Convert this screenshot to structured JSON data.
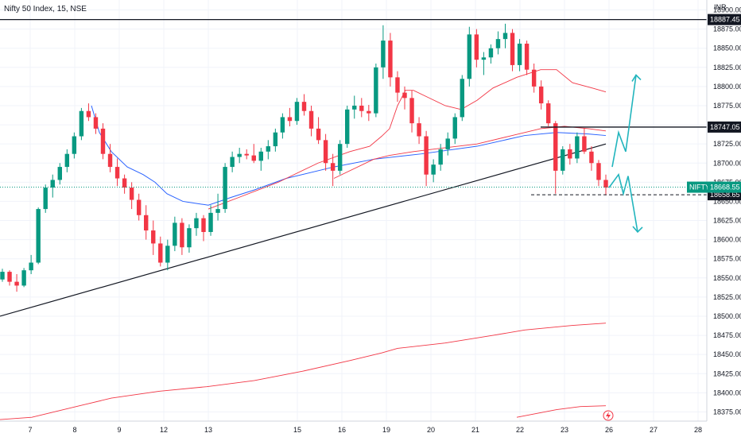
{
  "chart_data": {
    "type": "candlestick",
    "title": "Nifty 50 Index, 15, NSE",
    "currency": "INR",
    "x_ticks": [
      "7",
      "8",
      "9",
      "12",
      "13",
      "15",
      "16",
      "19",
      "20",
      "21",
      "22",
      "23",
      "26",
      "27",
      "28"
    ],
    "y_ticks": [
      "18375.00",
      "18400.00",
      "18425.00",
      "18450.00",
      "18475.00",
      "18500.00",
      "18525.00",
      "18550.00",
      "18575.00",
      "18600.00",
      "18625.00",
      "18650.00",
      "18675.00",
      "18700.00",
      "18725.00",
      "18750.00",
      "18775.00",
      "18800.00",
      "18825.00",
      "18850.00",
      "18875.00",
      "18900.00"
    ],
    "ylim": [
      18363,
      18913
    ],
    "last_price": {
      "symbol": "NIFTY",
      "value": 18668.55,
      "label": "18668.55"
    },
    "price_levels": [
      {
        "value": 18887.45,
        "label": "18887.45"
      },
      {
        "value": 18747.05,
        "label": "18747.05"
      },
      {
        "value": 18658.65,
        "label": "18658.65"
      }
    ],
    "overlays": {
      "trendline": [
        [
          0,
          18500
        ],
        [
          762,
          18725
        ]
      ],
      "blue_ma": [
        [
          115,
          18775
        ],
        [
          125,
          18740
        ],
        [
          140,
          18715
        ],
        [
          160,
          18695
        ],
        [
          180,
          18685
        ],
        [
          195,
          18675
        ],
        [
          210,
          18660
        ],
        [
          230,
          18650
        ],
        [
          262,
          18645
        ],
        [
          290,
          18655
        ],
        [
          320,
          18665
        ],
        [
          360,
          18680
        ],
        [
          420,
          18695
        ],
        [
          470,
          18705
        ],
        [
          530,
          18712
        ],
        [
          600,
          18722
        ],
        [
          660,
          18736
        ],
        [
          700,
          18740
        ],
        [
          740,
          18738
        ],
        [
          762,
          18736
        ]
      ],
      "red_inner": [
        [
          262,
          18640
        ],
        [
          300,
          18655
        ],
        [
          350,
          18675
        ],
        [
          400,
          18700
        ],
        [
          440,
          18715
        ],
        [
          465,
          18722
        ],
        [
          480,
          18735
        ],
        [
          490,
          18745
        ],
        [
          500,
          18775
        ],
        [
          510,
          18795
        ],
        [
          520,
          18795
        ],
        [
          540,
          18785
        ],
        [
          560,
          18775
        ],
        [
          580,
          18770
        ],
        [
          600,
          18782
        ],
        [
          620,
          18798
        ],
        [
          650,
          18812
        ],
        [
          680,
          18822
        ],
        [
          700,
          18822
        ],
        [
          720,
          18805
        ],
        [
          745,
          18798
        ],
        [
          762,
          18793
        ]
      ],
      "red_outer": [
        [
          420,
          18680
        ],
        [
          470,
          18705
        ],
        [
          490,
          18710
        ],
        [
          520,
          18715
        ],
        [
          560,
          18720
        ],
        [
          600,
          18725
        ],
        [
          640,
          18735
        ],
        [
          680,
          18745
        ],
        [
          710,
          18748
        ],
        [
          740,
          18745
        ],
        [
          762,
          18742
        ]
      ],
      "red_long_upper": [
        [
          0,
          18365
        ],
        [
          40,
          18368
        ],
        [
          100,
          18383
        ],
        [
          140,
          18393
        ],
        [
          200,
          18402
        ],
        [
          260,
          18408
        ],
        [
          320,
          18416
        ],
        [
          380,
          18428
        ],
        [
          440,
          18442
        ],
        [
          480,
          18452
        ],
        [
          500,
          18458
        ],
        [
          560,
          18465
        ],
        [
          620,
          18475
        ],
        [
          660,
          18482
        ],
        [
          720,
          18488
        ],
        [
          762,
          18491
        ]
      ],
      "red_long_lower": [
        [
          650,
          18368
        ],
        [
          700,
          18378
        ],
        [
          730,
          18382
        ],
        [
          762,
          18383
        ]
      ]
    },
    "candles": [
      [
        18548,
        18562,
        18545,
        18558
      ],
      [
        18558,
        18560,
        18540,
        18545
      ],
      [
        18545,
        18555,
        18532,
        18540
      ],
      [
        18540,
        18563,
        18538,
        18560
      ],
      [
        18560,
        18580,
        18555,
        18570
      ],
      [
        18570,
        18642,
        18568,
        18640
      ],
      [
        18640,
        18672,
        18635,
        18668
      ],
      [
        18668,
        18685,
        18655,
        18678
      ],
      [
        18678,
        18700,
        18672,
        18695
      ],
      [
        18695,
        18718,
        18688,
        18712
      ],
      [
        18712,
        18740,
        18706,
        18735
      ],
      [
        18735,
        18772,
        18730,
        18768
      ],
      [
        18768,
        18778,
        18755,
        18760
      ],
      [
        18760,
        18765,
        18738,
        18745
      ],
      [
        18745,
        18752,
        18705,
        18712
      ],
      [
        18712,
        18725,
        18688,
        18695
      ],
      [
        18695,
        18706,
        18670,
        18680
      ],
      [
        18680,
        18685,
        18660,
        18668
      ],
      [
        18668,
        18675,
        18640,
        18652
      ],
      [
        18652,
        18660,
        18625,
        18632
      ],
      [
        18632,
        18645,
        18600,
        18612
      ],
      [
        18612,
        18625,
        18580,
        18595
      ],
      [
        18595,
        18604,
        18565,
        18570
      ],
      [
        18570,
        18600,
        18560,
        18592
      ],
      [
        18592,
        18630,
        18585,
        18622
      ],
      [
        18622,
        18628,
        18580,
        18590
      ],
      [
        18590,
        18620,
        18583,
        18615
      ],
      [
        18615,
        18635,
        18605,
        18628
      ],
      [
        18628,
        18632,
        18598,
        18610
      ],
      [
        18610,
        18645,
        18605,
        18635
      ],
      [
        18635,
        18660,
        18625,
        18640
      ],
      [
        18640,
        18700,
        18635,
        18695
      ],
      [
        18695,
        18715,
        18688,
        18708
      ],
      [
        18708,
        18720,
        18700,
        18712
      ],
      [
        18712,
        18718,
        18705,
        18710
      ],
      [
        18710,
        18725,
        18700,
        18703
      ],
      [
        18703,
        18720,
        18690,
        18715
      ],
      [
        18715,
        18730,
        18705,
        18722
      ],
      [
        18722,
        18745,
        18715,
        18740
      ],
      [
        18740,
        18765,
        18732,
        18760
      ],
      [
        18760,
        18772,
        18748,
        18755
      ],
      [
        18755,
        18785,
        18750,
        18780
      ],
      [
        18780,
        18790,
        18762,
        18768
      ],
      [
        18768,
        18775,
        18735,
        18745
      ],
      [
        18745,
        18760,
        18725,
        18730
      ],
      [
        18730,
        18738,
        18690,
        18700
      ],
      [
        18700,
        18712,
        18670,
        18690
      ],
      [
        18690,
        18730,
        18685,
        18725
      ],
      [
        18725,
        18775,
        18720,
        18770
      ],
      [
        18770,
        18788,
        18758,
        18775
      ],
      [
        18775,
        18785,
        18760,
        18768
      ],
      [
        18768,
        18776,
        18755,
        18765
      ],
      [
        18765,
        18830,
        18760,
        18825
      ],
      [
        18825,
        18880,
        18810,
        18860
      ],
      [
        18860,
        18870,
        18800,
        18812
      ],
      [
        18812,
        18820,
        18780,
        18792
      ],
      [
        18792,
        18800,
        18770,
        18785
      ],
      [
        18785,
        18795,
        18740,
        18752
      ],
      [
        18752,
        18760,
        18725,
        18735
      ],
      [
        18735,
        18742,
        18670,
        18685
      ],
      [
        18685,
        18705,
        18675,
        18698
      ],
      [
        18698,
        18725,
        18690,
        18718
      ],
      [
        18718,
        18740,
        18710,
        18732
      ],
      [
        18732,
        18765,
        18725,
        18760
      ],
      [
        18760,
        18815,
        18755,
        18810
      ],
      [
        18810,
        18878,
        18800,
        18868
      ],
      [
        18868,
        18875,
        18825,
        18835
      ],
      [
        18835,
        18845,
        18815,
        18838
      ],
      [
        18838,
        18855,
        18830,
        18850
      ],
      [
        18850,
        18872,
        18842,
        18862
      ],
      [
        18862,
        18882,
        18850,
        18870
      ],
      [
        18870,
        18875,
        18820,
        18828
      ],
      [
        18828,
        18862,
        18820,
        18856
      ],
      [
        18856,
        18860,
        18815,
        18822
      ],
      [
        18822,
        18830,
        18792,
        18800
      ],
      [
        18800,
        18808,
        18770,
        18778
      ],
      [
        18778,
        18782,
        18748,
        18752
      ],
      [
        18752,
        18755,
        18660,
        18690
      ],
      [
        18690,
        18722,
        18685,
        18718
      ],
      [
        18718,
        18725,
        18698,
        18706
      ],
      [
        18706,
        18740,
        18700,
        18735
      ],
      [
        18735,
        18746,
        18712,
        18715
      ],
      [
        18715,
        18722,
        18690,
        18700
      ],
      [
        18700,
        18704,
        18670,
        18678
      ],
      [
        18678,
        18685,
        18658,
        18668
      ]
    ]
  }
}
